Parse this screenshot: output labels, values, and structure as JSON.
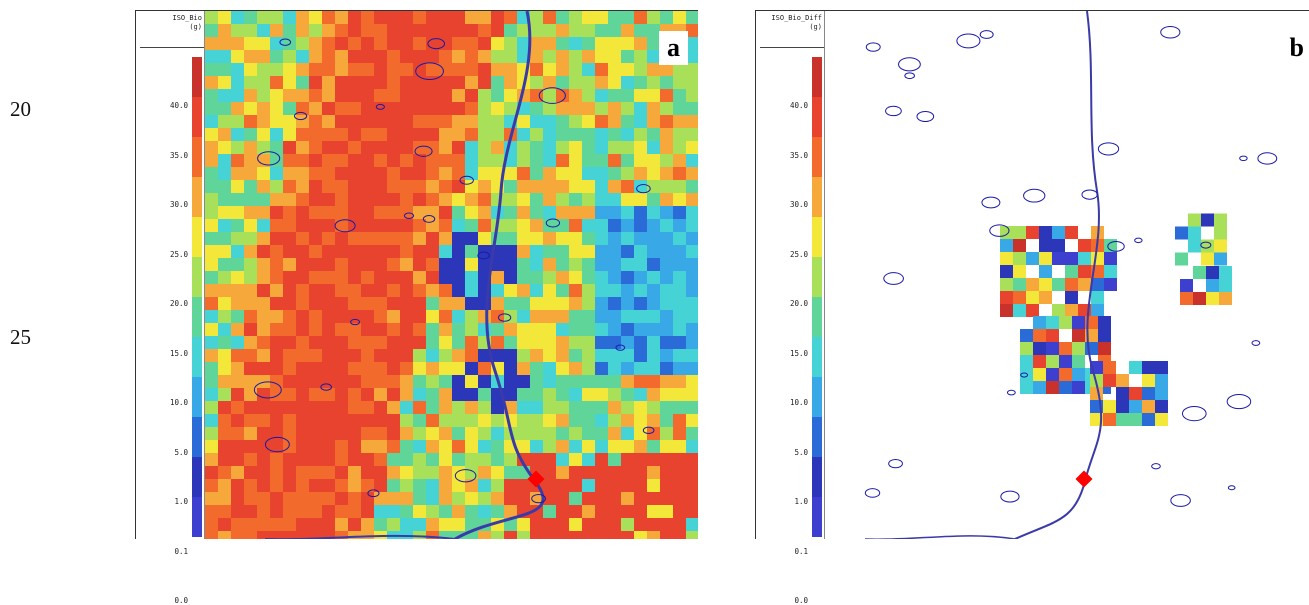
{
  "line_numbers": [
    "20",
    "25"
  ],
  "panels": [
    {
      "id": "a",
      "label": "a",
      "legend_title": "ISO_Bio",
      "legend_units": "(g)",
      "ticks": [
        "40.0",
        "35.0",
        "30.0",
        "25.0",
        "20.0",
        "15.0",
        "10.0",
        "5.0",
        "1.0",
        "0.1",
        "0.0"
      ]
    },
    {
      "id": "b",
      "label": "b",
      "legend_title": "ISO_Bio_Diff",
      "legend_units": "(g)",
      "ticks": [
        "40.0",
        "35.0",
        "30.0",
        "25.0",
        "20.0",
        "15.0",
        "10.0",
        "5.0",
        "1.0",
        "0.1",
        "0.0"
      ]
    }
  ],
  "colors": {
    "scale": [
      "#c8322a",
      "#e8432e",
      "#f26a2c",
      "#f6a83a",
      "#f3e83a",
      "#a8e05a",
      "#5fd59a",
      "#45d3d6",
      "#38a9e6",
      "#2a6bd8",
      "#2b36b8",
      "#3d3fcf"
    ],
    "marker": "#ff0000",
    "contour": "#1a1aa8"
  }
}
